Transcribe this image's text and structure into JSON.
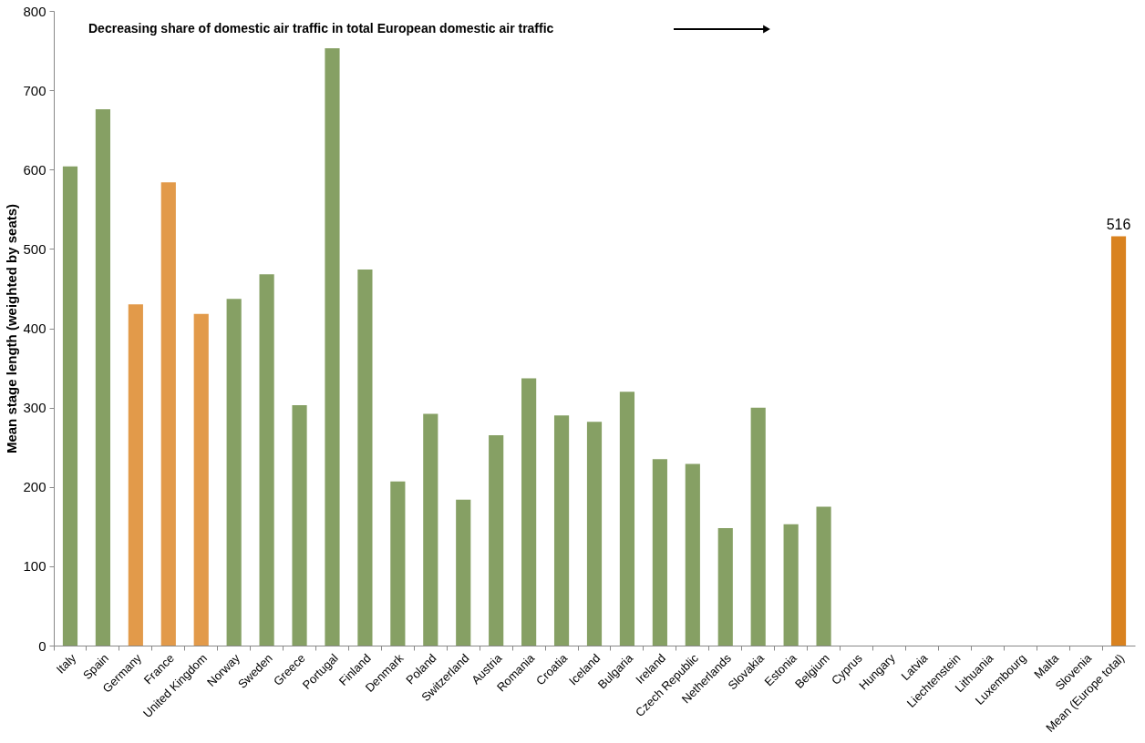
{
  "chart_data": {
    "type": "bar",
    "ylabel": "Mean stage length (weighted by seats)",
    "categories": [
      "Italy",
      "Spain",
      "Germany",
      "France",
      "United Kingdom",
      "Norway",
      "Sweden",
      "Greece",
      "Portugal",
      "Finland",
      "Denmark",
      "Poland",
      "Switzerland",
      "Austria",
      "Romania",
      "Croatia",
      "Iceland",
      "Bulgaria",
      "Ireland",
      "Czech Republic",
      "Netherlands",
      "Slovakia",
      "Estonia",
      "Belgium",
      "Cyprus",
      "Hungary",
      "Latvia",
      "Liechtenstein",
      "Lithuania",
      "Luxembourg",
      "Malta",
      "Slovenia",
      "Mean (Europe total)"
    ],
    "values": [
      604,
      676,
      430,
      584,
      418,
      437,
      468,
      303,
      753,
      474,
      207,
      292,
      184,
      265,
      337,
      290,
      282,
      320,
      235,
      229,
      148,
      300,
      153,
      175,
      null,
      null,
      null,
      null,
      null,
      null,
      null,
      null,
      516
    ],
    "colors": [
      "#86a064",
      "#86a064",
      "#e29a4a",
      "#e29a4a",
      "#e29a4a",
      "#86a064",
      "#86a064",
      "#86a064",
      "#86a064",
      "#86a064",
      "#86a064",
      "#86a064",
      "#86a064",
      "#86a064",
      "#86a064",
      "#86a064",
      "#86a064",
      "#86a064",
      "#86a064",
      "#86a064",
      "#86a064",
      "#86a064",
      "#86a064",
      "#86a064",
      "#86a064",
      "#86a064",
      "#86a064",
      "#86a064",
      "#86a064",
      "#86a064",
      "#86a064",
      "#86a064",
      "#d9821f"
    ],
    "value_labels": [
      null,
      null,
      null,
      null,
      null,
      null,
      null,
      null,
      null,
      null,
      null,
      null,
      null,
      null,
      null,
      null,
      null,
      null,
      null,
      null,
      null,
      null,
      null,
      null,
      null,
      null,
      null,
      null,
      null,
      null,
      null,
      null,
      "516"
    ],
    "ylim": [
      0,
      800
    ],
    "yticks": [
      0,
      100,
      200,
      300,
      400,
      500,
      600,
      700,
      800
    ],
    "grid": false,
    "annotations": [
      "Decreasing share of domestic air traffic in total European domestic air traffic"
    ]
  }
}
